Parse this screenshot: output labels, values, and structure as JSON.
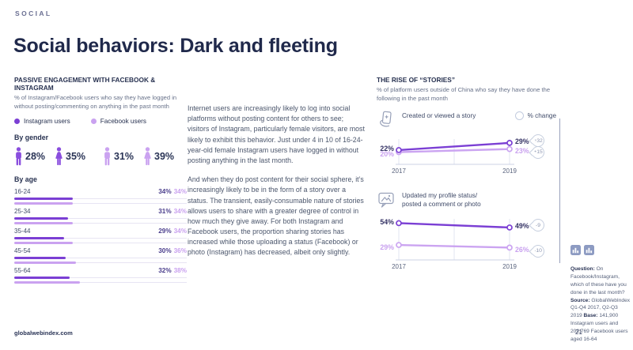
{
  "eyebrow": "SOCIAL",
  "title": "Social behaviors: Dark and fleeting",
  "passive": {
    "heading": "PASSIVE ENGAGEMENT WITH FACEBOOK & INSTAGRAM",
    "subheading": "% of Instagram/Facebook users who say they have logged in without posting/commenting on anything in the past month",
    "legend": [
      {
        "label": "Instagram users",
        "color": "#7b3fd4"
      },
      {
        "label": "Facebook users",
        "color": "#caa2f0"
      }
    ],
    "by_gender_label": "By gender",
    "gender_stats": [
      {
        "series": "Instagram users",
        "gender": "male",
        "value": "28%",
        "color": "#8a4ede"
      },
      {
        "series": "Instagram users",
        "gender": "female",
        "value": "35%",
        "color": "#8a4ede"
      },
      {
        "series": "Facebook users",
        "gender": "male",
        "value": "31%",
        "color": "#caa2f0"
      },
      {
        "series": "Facebook users",
        "gender": "female",
        "value": "39%",
        "color": "#caa2f0"
      }
    ],
    "by_age_label": "By age",
    "age_rows": [
      {
        "label": "16-24",
        "instagram": 34,
        "facebook": 34,
        "instagram_label": "34%",
        "facebook_label": "34%"
      },
      {
        "label": "25-34",
        "instagram": 31,
        "facebook": 34,
        "instagram_label": "31%",
        "facebook_label": "34%"
      },
      {
        "label": "35-44",
        "instagram": 29,
        "facebook": 34,
        "instagram_label": "29%",
        "facebook_label": "34%"
      },
      {
        "label": "45-54",
        "instagram": 30,
        "facebook": 36,
        "instagram_label": "30%",
        "facebook_label": "36%"
      },
      {
        "label": "55-64",
        "instagram": 32,
        "facebook": 38,
        "instagram_label": "32%",
        "facebook_label": "38%"
      }
    ]
  },
  "body_text": {
    "p1": "Internet users are increasingly likely to log into social platforms without posting content for others to see; visitors of Instagram, particularly female visitors, are most likely to exhibit this behavior. Just under 4 in 10 of 16-24-year-old female Instagram users have logged in without posting anything in the last month.",
    "p2": "And when they do post content for their social sphere, it’s increasingly likely to be in the form of a story over a status. The transient, easily-consumable nature of stories allows users to share with a greater degree of control in how much they give away. For both Instagram and Facebook users, the proportion sharing stories has increased while those uploading a status (Facebook) or photo (Instagram) has decreased, albeit only slightly."
  },
  "stories": {
    "heading": "THE RISE OF “STORIES”",
    "subheading": "% of platform users outside of China who say they have done the following in the past month",
    "pct_change_label": "% change",
    "charts": [
      {
        "label": "Created or viewed a story",
        "icon": "story-phone-icon",
        "years": [
          "2017",
          "2019"
        ],
        "ylim": [
          15,
          32
        ],
        "series": [
          {
            "name": "Instagram users",
            "color": "#7b3fd4",
            "values": [
              22,
              29
            ],
            "start_label": "22%",
            "end_label": "29%",
            "change": "+32"
          },
          {
            "name": "Facebook users",
            "color": "#cba4f1",
            "values": [
              20,
              23
            ],
            "start_label": "20%",
            "end_label": "23%",
            "change": "+15"
          }
        ]
      },
      {
        "label": "Updated my profile status/ posted a comment or photo",
        "icon": "status-bubble-icon",
        "years": [
          "2017",
          "2019"
        ],
        "ylim": [
          20,
          58
        ],
        "series": [
          {
            "name": "Instagram users",
            "color": "#7b3fd4",
            "values": [
              54,
              49
            ],
            "start_label": "54%",
            "end_label": "49%",
            "change": "-9"
          },
          {
            "name": "Facebook users",
            "color": "#cba4f1",
            "values": [
              29,
              26
            ],
            "start_label": "29%",
            "end_label": "26%",
            "change": "-10"
          }
        ]
      }
    ]
  },
  "notes": {
    "question_label": "Question:",
    "question": "On Facebook/Instagram, which of these have you done in the last month?",
    "source_label": "Source:",
    "source": "GlobalWebIndex Q1-Q4 2017, Q2-Q3 2019",
    "base_label": "Base:",
    "base": "141,900 Instagram users and 202,769 Facebook users aged 16-64"
  },
  "footer": {
    "site": "globalwebindex.com",
    "page": "21"
  },
  "chart_data": [
    {
      "type": "pictograph",
      "title": "Passive engagement with Facebook & Instagram — by gender",
      "unit": "%",
      "series": [
        {
          "name": "Instagram users",
          "male": 28,
          "female": 35
        },
        {
          "name": "Facebook users",
          "male": 31,
          "female": 39
        }
      ]
    },
    {
      "type": "bar",
      "orientation": "horizontal",
      "title": "Passive engagement with Facebook & Instagram — by age",
      "categories": [
        "16-24",
        "25-34",
        "35-44",
        "45-54",
        "55-64"
      ],
      "series": [
        {
          "name": "Instagram users",
          "values": [
            34,
            31,
            29,
            30,
            32
          ]
        },
        {
          "name": "Facebook users",
          "values": [
            34,
            34,
            34,
            36,
            38
          ]
        }
      ],
      "unit": "%",
      "xlim": [
        0,
        100
      ],
      "grid": false
    },
    {
      "type": "line",
      "title": "Created or viewed a story",
      "x": [
        "2017",
        "2019"
      ],
      "series": [
        {
          "name": "Instagram users",
          "values": [
            22,
            29
          ],
          "pct_change": 32
        },
        {
          "name": "Facebook users",
          "values": [
            20,
            23
          ],
          "pct_change": 15
        }
      ],
      "unit": "%",
      "legend_position": "top-right",
      "grid": true
    },
    {
      "type": "line",
      "title": "Updated my profile status/ posted a comment or photo",
      "x": [
        "2017",
        "2019"
      ],
      "series": [
        {
          "name": "Instagram users",
          "values": [
            54,
            49
          ],
          "pct_change": -9
        },
        {
          "name": "Facebook users",
          "values": [
            29,
            26
          ],
          "pct_change": -10
        }
      ],
      "unit": "%",
      "grid": true
    }
  ]
}
